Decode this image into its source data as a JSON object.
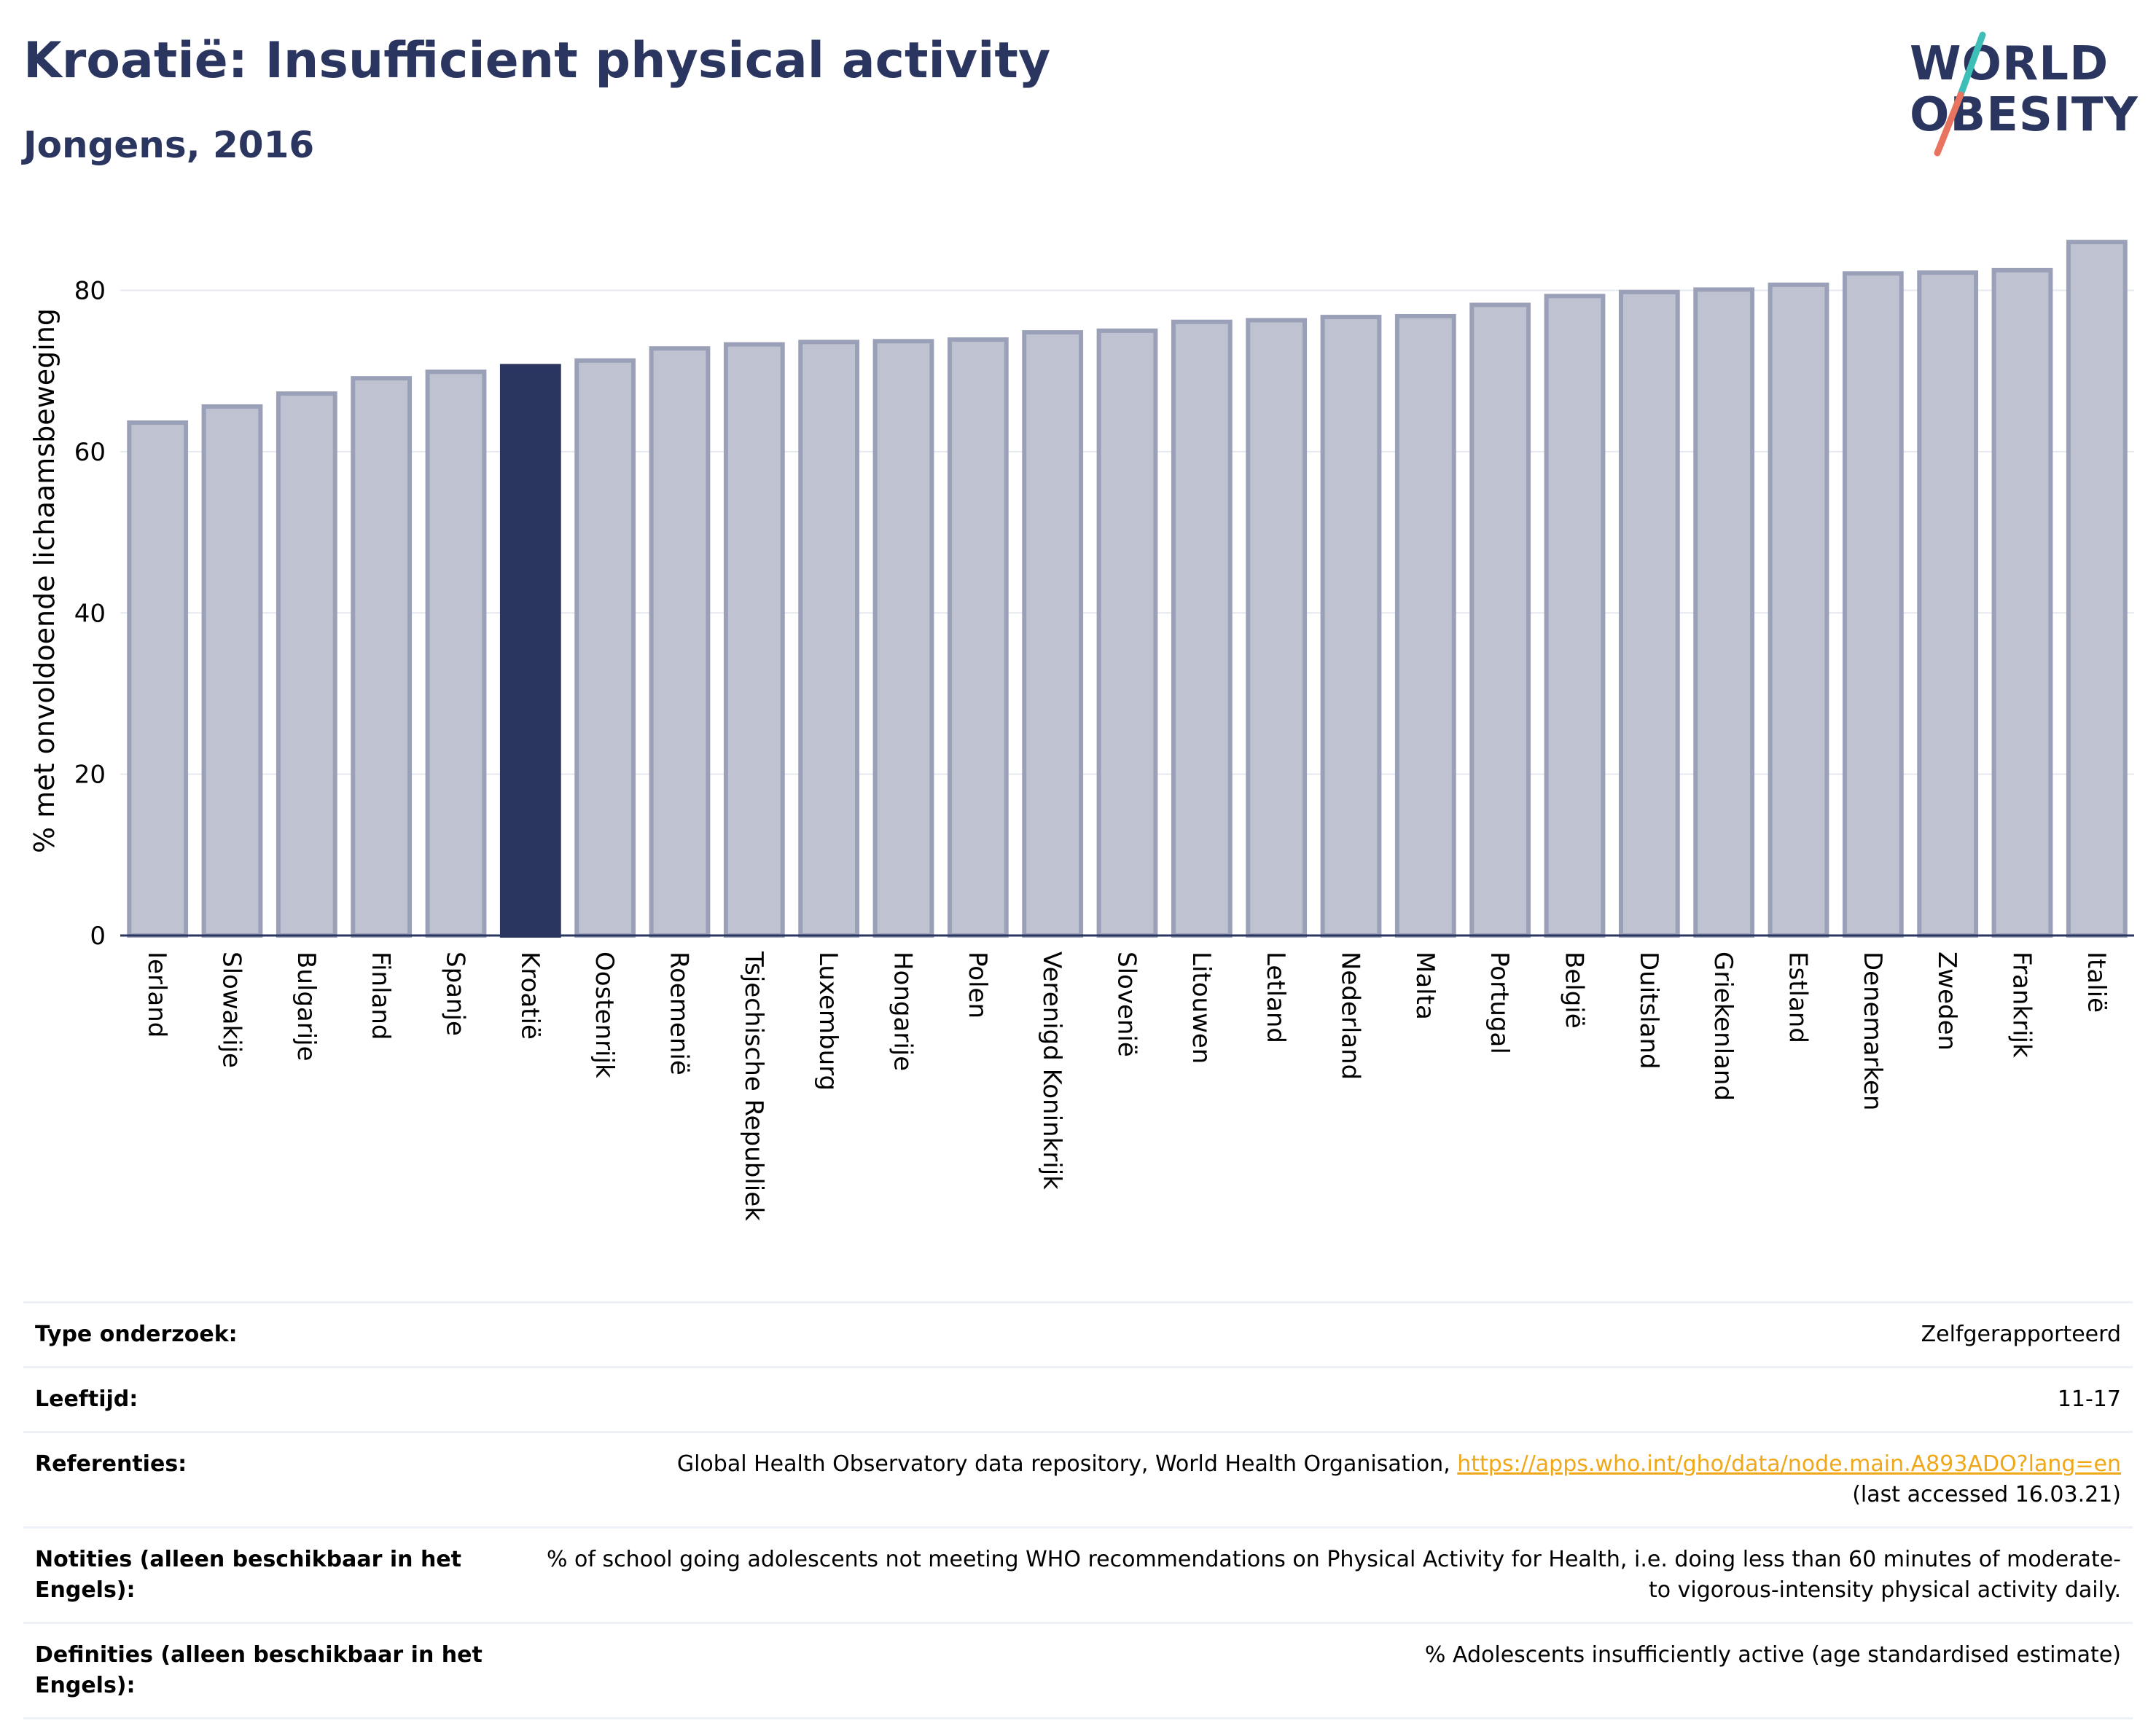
{
  "header": {
    "title": "Kroatië: Insufficient physical activity",
    "subtitle": "Jongens, 2016"
  },
  "logo": {
    "line1": "WORLD",
    "line2": "OBESITY"
  },
  "colors": {
    "navy": "#2a3560",
    "bar": "#bfc3d1",
    "bar_edge": "#9aa0b7",
    "accent_teal": "#3dbfb8",
    "accent_coral": "#e8735e",
    "link": "#f0a818"
  },
  "chart_data": {
    "type": "bar",
    "title": "",
    "xlabel": "",
    "ylabel": "% met onvoldoende lichaamsbeweging",
    "ylim": [
      0,
      88
    ],
    "yticks": [
      0,
      20,
      40,
      60,
      80
    ],
    "grid": true,
    "highlight": "Kroatië",
    "categories": [
      "Ierland",
      "Slowakije",
      "Bulgarije",
      "Finland",
      "Spanje",
      "Kroatië",
      "Oostenrijk",
      "Roemenië",
      "Tsjechische Republiek",
      "Luxemburg",
      "Hongarije",
      "Polen",
      "Verenigd Koninkrijk",
      "Slovenië",
      "Litouwen",
      "Letland",
      "Nederland",
      "Malta",
      "Portugal",
      "België",
      "Duitsland",
      "Griekenland",
      "Estland",
      "Denemarken",
      "Zweden",
      "Frankrijk",
      "Italië"
    ],
    "values": [
      63.6,
      65.6,
      67.2,
      69.1,
      69.9,
      70.6,
      71.3,
      72.8,
      73.3,
      73.6,
      73.7,
      73.9,
      74.8,
      75.0,
      76.1,
      76.3,
      76.7,
      76.8,
      78.2,
      79.3,
      79.8,
      80.1,
      80.7,
      82.1,
      82.2,
      82.5,
      86.0
    ]
  },
  "details": [
    {
      "key": "Type onderzoek:",
      "value": "Zelfgerapporteerd"
    },
    {
      "key": "Leeftijd:",
      "value": "11-17"
    },
    {
      "key": "Referenties:",
      "value_before": "Global Health Observatory data repository, World Health Organisation, ",
      "link": "https://apps.who.int/gho/data/node.main.A893ADO?lang=en",
      "value_after": "(last accessed 16.03.21)"
    },
    {
      "key": "Notities (alleen beschikbaar in het Engels):",
      "value": "% of school going adolescents not meeting WHO recommendations on Physical Activity for Health, i.e. doing less than 60 minutes of moderate- to vigorous-intensity physical activity daily."
    },
    {
      "key": "Definities (alleen beschikbaar in het Engels):",
      "value": "% Adolescents insufficiently active (age standardised estimate)"
    }
  ]
}
